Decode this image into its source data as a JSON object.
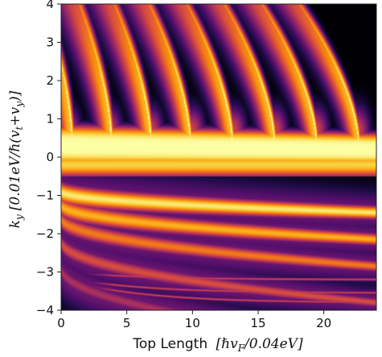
{
  "chart_data": {
    "type": "heatmap",
    "colormap": "inferno",
    "x": {
      "label_text": "Top Length",
      "label_math": "[ℏv",
      "label_math_sub": "F",
      "label_math_tail": "/0.04eV]",
      "range": [
        0,
        24
      ],
      "ticks": [
        0,
        5,
        10,
        15,
        20
      ],
      "tick_labels": [
        "0",
        "5",
        "10",
        "15",
        "20"
      ]
    },
    "y": {
      "label_k": "k",
      "label_k_sub": "y",
      "label_unit_a": "[0.01eV/ℏ(v",
      "label_unit_t": "t",
      "label_unit_plus": "+v",
      "label_unit_y": "y",
      "label_unit_close": ")]",
      "range": [
        -4,
        4
      ],
      "ticks": [
        -4,
        -3,
        -2,
        -1,
        0,
        1,
        2,
        3,
        4
      ],
      "tick_labels": [
        "−4",
        "−3",
        "−2",
        "−1",
        "0",
        "1",
        "2",
        "3",
        "4"
      ]
    },
    "features": {
      "upper_resonance_lengths": [
        1.0,
        4.0,
        7.0,
        10.0,
        13.2,
        16.4,
        19.6,
        22.8
      ],
      "central_bright_band_ky": [
        0.0,
        0.6
      ],
      "lower_fringe_series": [
        {
          "order": 1,
          "ky_at_x0": -0.9
        },
        {
          "order": 2,
          "ky_at_x0": -1.25
        },
        {
          "order": 3,
          "ky_at_x0": -1.6
        },
        {
          "order": 4,
          "ky_at_x0": -2.2
        },
        {
          "order": 5,
          "ky_at_x0": -2.9
        }
      ]
    },
    "grid": false,
    "legend": "none"
  }
}
